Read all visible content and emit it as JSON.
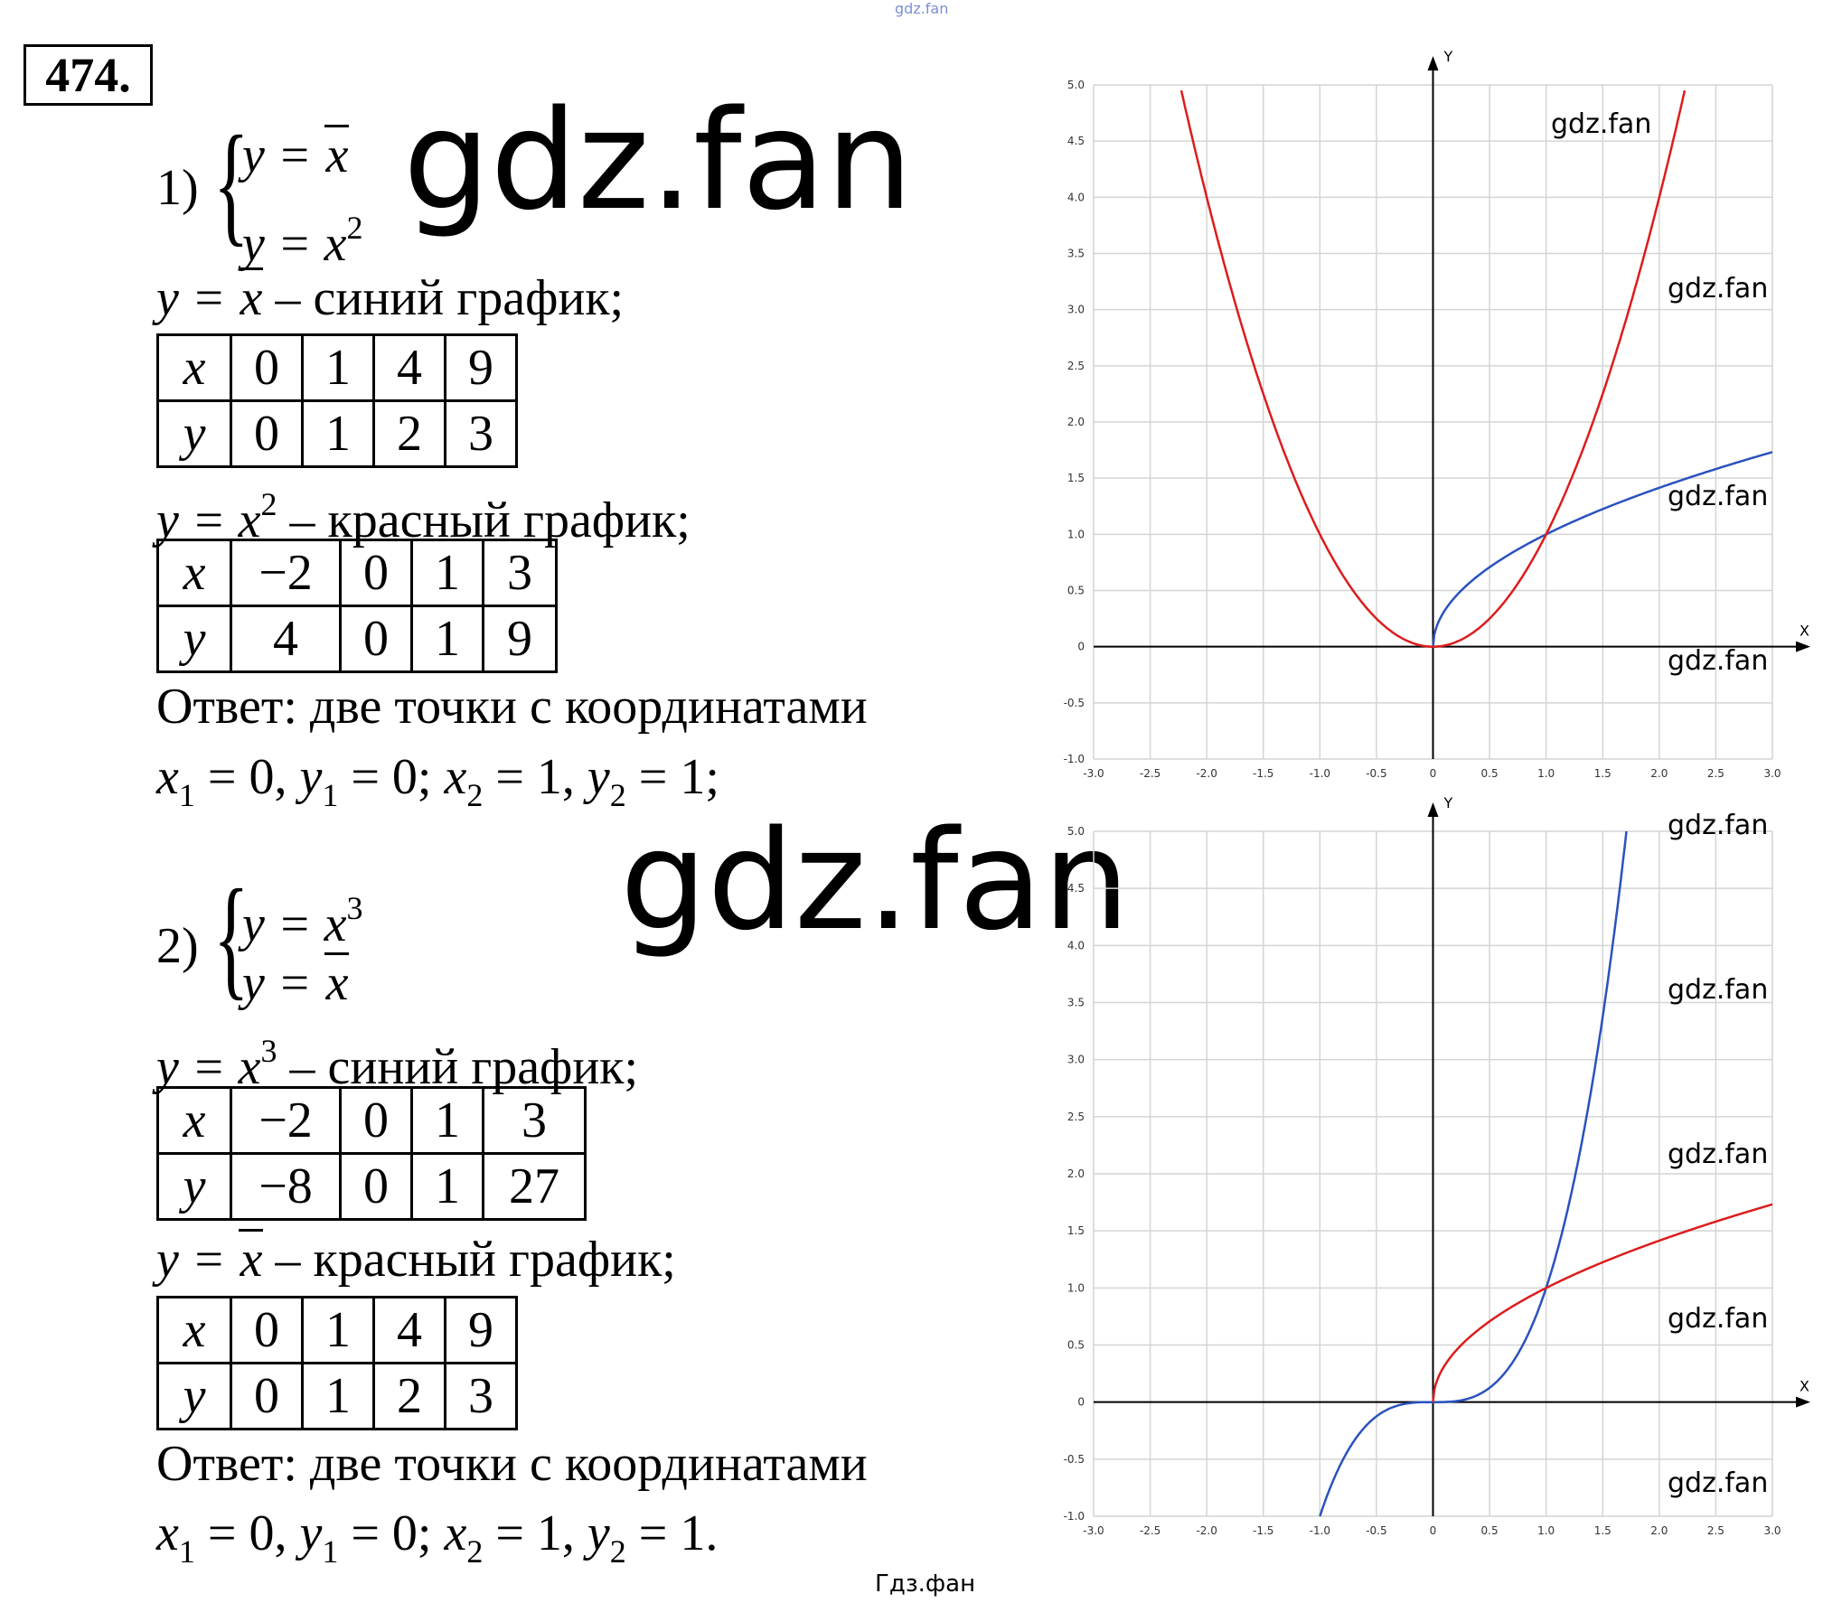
{
  "header": {
    "top_watermark": "gdz.fan",
    "number": "474."
  },
  "part1": {
    "label": "1)",
    "system": [
      {
        "lhs": "y = ",
        "rad": "x",
        "sup": ""
      },
      {
        "lhs": "y = x",
        "rad": "",
        "sup": "2"
      }
    ],
    "graph1": {
      "lhs": "y = ",
      "rad": "x",
      "sup": "",
      "rest": " – синий график;"
    },
    "table1": {
      "x": [
        "x",
        "0",
        "1",
        "4",
        "9"
      ],
      "y": [
        "y",
        "0",
        "1",
        "2",
        "3"
      ]
    },
    "graph2": {
      "lhs": "y = x",
      "sup": "2",
      "rest": " – красный график;"
    },
    "table2": {
      "x": [
        "x",
        "−2",
        "0",
        "1",
        "3"
      ],
      "y": [
        "y",
        "4",
        "0",
        "1",
        "9"
      ]
    },
    "answer": "Ответ: две точки с координатами",
    "coords": {
      "x1": "x",
      "s1": "1",
      "v1": " = 0, ",
      "y1": "y",
      "s2": "1",
      "v2": " = 0; ",
      "x2": "x",
      "s3": "2",
      "v3": " = 1, ",
      "y2": "y",
      "s4": "2",
      "v4": " = 1;"
    }
  },
  "part2": {
    "label": "2)",
    "system": [
      {
        "lhs": "y = x",
        "rad": "",
        "sup": "3"
      },
      {
        "lhs": "y = ",
        "rad": "x",
        "sup": ""
      }
    ],
    "graph1": {
      "lhs": "y = x",
      "sup": "3",
      "rest": " – синий график;"
    },
    "table1": {
      "x": [
        "x",
        "−2",
        "0",
        "1",
        "3"
      ],
      "y": [
        "y",
        "−8",
        "0",
        "1",
        "27"
      ]
    },
    "graph2": {
      "lhs": "y = ",
      "rad": "x",
      "sup": "",
      "rest": " – красный график;"
    },
    "table2": {
      "x": [
        "x",
        "0",
        "1",
        "4",
        "9"
      ],
      "y": [
        "y",
        "0",
        "1",
        "2",
        "3"
      ]
    },
    "answer": "Ответ: две точки с координатами",
    "coords": {
      "x1": "x",
      "s1": "1",
      "v1": " = 0, ",
      "y1": "y",
      "s2": "1",
      "v2": " = 0; ",
      "x2": "x",
      "s3": "2",
      "v3": " = 1, ",
      "y2": "y",
      "s4": "2",
      "v4": " = 1."
    }
  },
  "watermarks": {
    "big": "gdz.fan",
    "small": "gdz.fan",
    "footer": "Гдз.фан"
  },
  "colors": {
    "blue": "#2a52be",
    "red": "#dd1c1c",
    "grid": "#d4d4d4"
  },
  "chart_data": [
    {
      "type": "line",
      "xlabel": "X",
      "ylabel": "Y",
      "xlim": [
        -3,
        3
      ],
      "ylim": [
        -1,
        5
      ],
      "grid": true,
      "xticks": [
        "-3.0",
        "-2.5",
        "-2.0",
        "-1.5",
        "-1.0",
        "-0.5",
        "0",
        "0.5",
        "1.0",
        "1.5",
        "2.0",
        "2.5",
        "3.0"
      ],
      "yticks": [
        "-1.0",
        "-0.5",
        "0",
        "0.5",
        "1.0",
        "1.5",
        "2.0",
        "2.5",
        "3.0",
        "3.5",
        "4.0",
        "4.5",
        "5.0"
      ],
      "series": [
        {
          "expression": "sqrt(x)",
          "color": "blue",
          "domain": [
            0,
            3
          ]
        },
        {
          "expression": "x^2",
          "color": "red",
          "domain": [
            -2.24,
            2.24
          ]
        }
      ]
    },
    {
      "type": "line",
      "xlabel": "X",
      "ylabel": "Y",
      "xlim": [
        -3,
        3
      ],
      "ylim": [
        -1,
        5
      ],
      "grid": true,
      "xticks": [
        "-3.0",
        "-2.5",
        "-2.0",
        "-1.5",
        "-1.0",
        "-0.5",
        "0",
        "0.5",
        "1.0",
        "1.5",
        "2.0",
        "2.5",
        "3.0"
      ],
      "yticks": [
        "-1.0",
        "-0.5",
        "0",
        "0.5",
        "1.0",
        "1.5",
        "2.0",
        "2.5",
        "3.0",
        "3.5",
        "4.0",
        "4.5",
        "5.0"
      ],
      "series": [
        {
          "expression": "x^3",
          "color": "blue",
          "domain": [
            -1,
            1.71
          ]
        },
        {
          "expression": "sqrt(x)",
          "color": "red",
          "domain": [
            0,
            3
          ]
        }
      ]
    }
  ]
}
